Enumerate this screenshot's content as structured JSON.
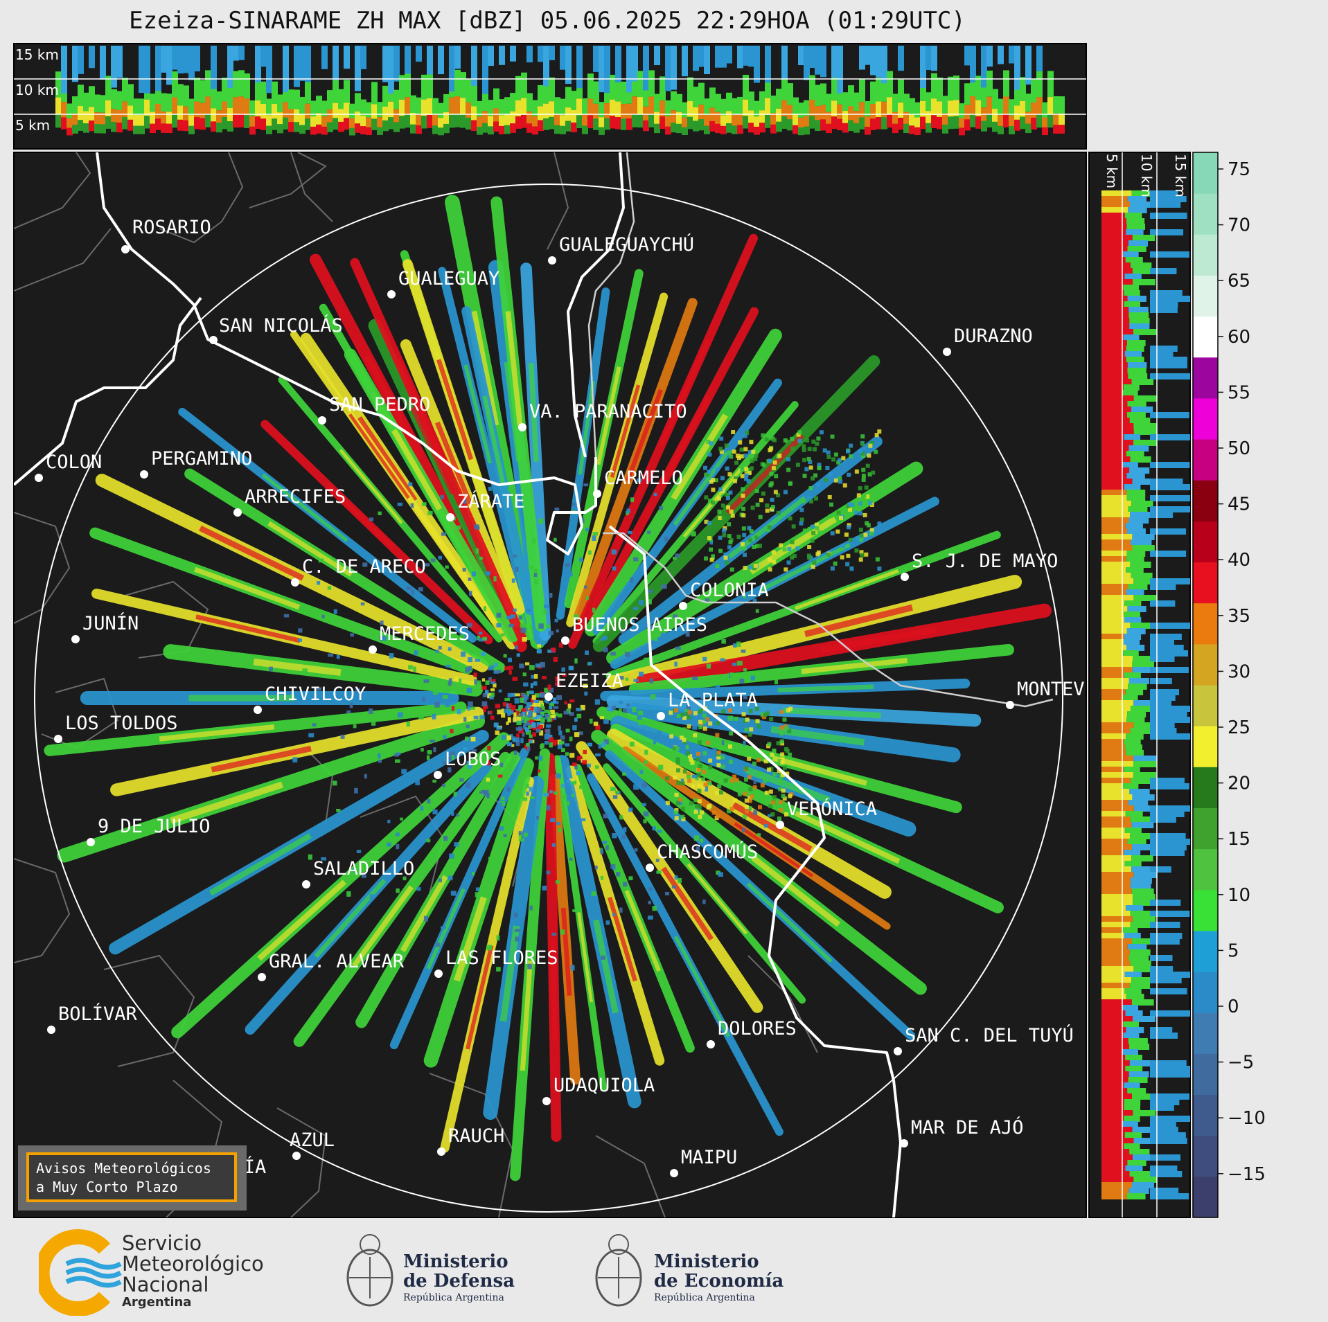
{
  "title": "Ezeiza-SINARAME ZH MAX [dBZ] 05.06.2025 22:29HOA (01:29UTC)",
  "top_panel": {
    "heights": [
      "15 km",
      "10 km",
      "5 km"
    ]
  },
  "side_panel": {
    "heights": [
      "5 km",
      "10 km",
      "15 km"
    ]
  },
  "colorbar": {
    "unit": "dBZ",
    "ticks": [
      "75",
      "70",
      "65",
      "60",
      "55",
      "50",
      "45",
      "40",
      "35",
      "30",
      "25",
      "20",
      "15",
      "10",
      "5",
      "0",
      "−5",
      "−10",
      "−15"
    ],
    "colors": [
      "#3c3f6b",
      "#3f4c7e",
      "#3f5b8e",
      "#406b9e",
      "#3f7cb1",
      "#2a8bc8",
      "#1ea0d6",
      "#39e136",
      "#4fc23f",
      "#3fa12e",
      "#267a1c",
      "#f1ef2e",
      "#c8c43c",
      "#d4a521",
      "#eb7a0f",
      "#e8101f",
      "#b8001b",
      "#8a0010",
      "#c60080",
      "#ee00d8",
      "#9c069e",
      "#ffffff",
      "#dff3e8",
      "#bde9d3",
      "#9fe0c2",
      "#86d8b7"
    ]
  },
  "radar_center": "EZEIZA",
  "cities": [
    {
      "name": "ROSARIO"
    },
    {
      "name": "GUALEGUAYCHÚ"
    },
    {
      "name": "GUALEGUAY"
    },
    {
      "name": "SAN NICOLÁS"
    },
    {
      "name": "DURAZNO"
    },
    {
      "name": "SAN PEDRO"
    },
    {
      "name": "VA. PARANACITO"
    },
    {
      "name": "COLON"
    },
    {
      "name": "PERGAMINO"
    },
    {
      "name": "CARMELO"
    },
    {
      "name": "ARRECIFES"
    },
    {
      "name": "ZÁRATE"
    },
    {
      "name": "S. J. DE MAYO"
    },
    {
      "name": "C. DE ARECO"
    },
    {
      "name": "COLONIA"
    },
    {
      "name": "JUNÍN"
    },
    {
      "name": "BUENOS AIRES"
    },
    {
      "name": "MERCEDES"
    },
    {
      "name": "EZEIZA"
    },
    {
      "name": "MONTEVIDEO"
    },
    {
      "name": "CHIVILCOY"
    },
    {
      "name": "LA PLATA"
    },
    {
      "name": "LOS TOLDOS"
    },
    {
      "name": "LOBOS"
    },
    {
      "name": "VERÓNICA"
    },
    {
      "name": "9 DE JULIO"
    },
    {
      "name": "CHASCOMÚS"
    },
    {
      "name": "SALADILLO"
    },
    {
      "name": "GRAL. ALVEAR"
    },
    {
      "name": "LAS FLORES"
    },
    {
      "name": "BOLÍVAR"
    },
    {
      "name": "DOLORES"
    },
    {
      "name": "SAN C. DEL TUYÚ"
    },
    {
      "name": "UDAQUIOLA"
    },
    {
      "name": "MAR DE AJÓ"
    },
    {
      "name": "AZUL"
    },
    {
      "name": "RAUCH"
    },
    {
      "name": "OLAVARRÍA"
    },
    {
      "name": "MAIPU"
    }
  ],
  "notice": {
    "line1": "Avisos Meteorológicos",
    "line2": "a Muy Corto Plazo"
  },
  "logos": {
    "smn": {
      "line1": "Servicio",
      "line2": "Meteorológico",
      "line3": "Nacional",
      "line4": "Argentina"
    },
    "defensa": {
      "line1": "Ministerio",
      "line2": "de Defensa",
      "line3": "República Argentina"
    },
    "economia": {
      "line1": "Ministerio",
      "line2": "de Economía",
      "line3": "República Argentina"
    }
  }
}
